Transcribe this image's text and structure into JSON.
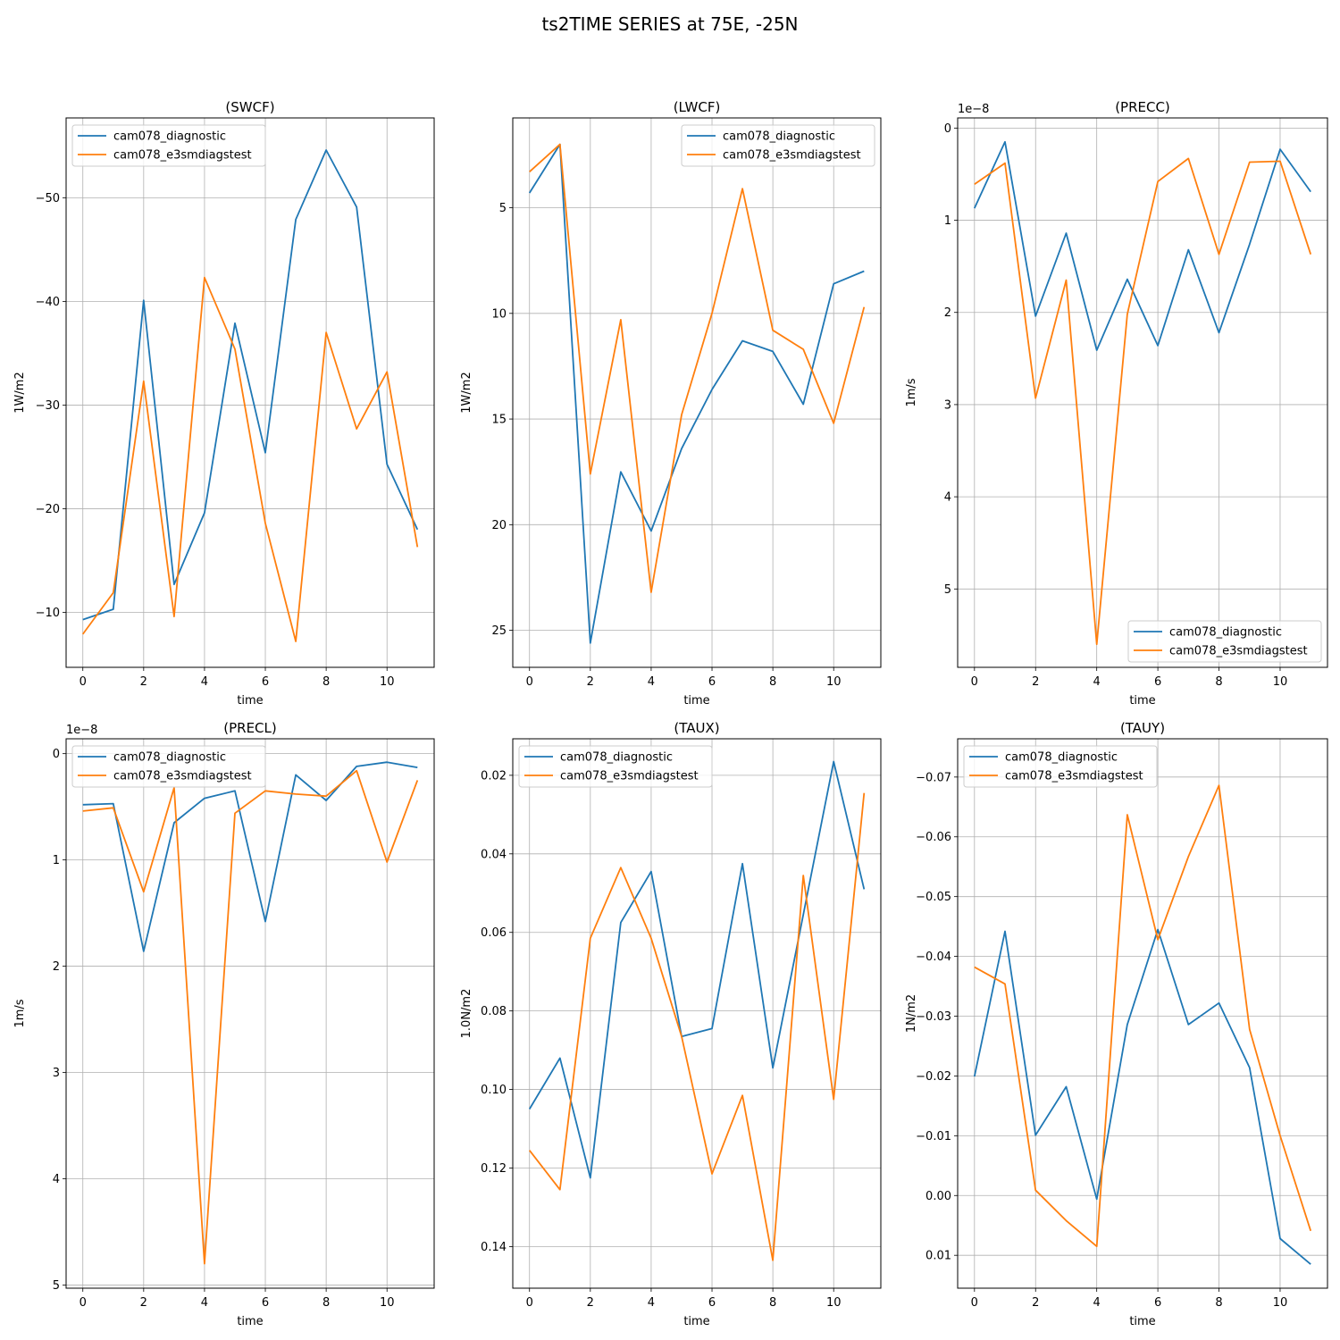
{
  "figure": {
    "title": "ts2TIME SERIES at 75E, -25N",
    "series_names": [
      "cam078_diagnostic",
      "cam078_e3smdiagstest"
    ],
    "series_colors": [
      "#1f77b4",
      "#ff7f0e"
    ],
    "grid": true
  },
  "chart_data": [
    {
      "type": "line",
      "title": "(SWCF)",
      "xlabel": "time",
      "ylabel": "1W/m2",
      "x": [
        0,
        1,
        2,
        3,
        4,
        5,
        6,
        7,
        8,
        9,
        10,
        11
      ],
      "xlim": [
        -0.55,
        11.55
      ],
      "xticks": [
        "0",
        "2",
        "4",
        "6",
        "8",
        "10"
      ],
      "ylim": [
        -4.7,
        -57.7
      ],
      "yticks": [
        "−50",
        "−40",
        "−30",
        "−20",
        "−10"
      ],
      "y_inverted": true,
      "legend": "upper left",
      "series": [
        {
          "name": "cam078_diagnostic",
          "values": [
            -9.3,
            -10.3,
            -40.1,
            -12.7,
            -19.6,
            -37.9,
            -25.4,
            -47.9,
            -54.6,
            -49.1,
            -24.3,
            -18.0
          ]
        },
        {
          "name": "cam078_e3smdiagstest",
          "values": [
            -7.9,
            -11.9,
            -32.3,
            -9.6,
            -42.3,
            -35.4,
            -18.6,
            -7.2,
            -37.0,
            -27.7,
            -33.2,
            -16.3
          ]
        }
      ]
    },
    {
      "type": "line",
      "title": "(LWCF)",
      "xlabel": "time",
      "ylabel": "1W/m2",
      "x": [
        0,
        1,
        2,
        3,
        4,
        5,
        6,
        7,
        8,
        9,
        10,
        11
      ],
      "xlim": [
        -0.55,
        11.55
      ],
      "xticks": [
        "0",
        "2",
        "4",
        "6",
        "8",
        "10"
      ],
      "ylim": [
        26.75,
        0.75
      ],
      "yticks": [
        "5",
        "10",
        "15",
        "20",
        "25"
      ],
      "y_inverted": true,
      "legend": "upper right",
      "series": [
        {
          "name": "cam078_diagnostic",
          "values": [
            4.3,
            2.0,
            25.6,
            17.5,
            20.3,
            16.4,
            13.6,
            11.3,
            11.8,
            14.3,
            8.6,
            8.0
          ]
        },
        {
          "name": "cam078_e3smdiagstest",
          "values": [
            3.3,
            2.0,
            17.6,
            10.3,
            23.2,
            14.8,
            10.0,
            4.1,
            10.8,
            11.7,
            15.2,
            9.7
          ]
        }
      ]
    },
    {
      "type": "line",
      "title": "(PRECC)",
      "xlabel": "time",
      "ylabel": "1m/s",
      "offset_text": "1e−8",
      "x": [
        0,
        1,
        2,
        3,
        4,
        5,
        6,
        7,
        8,
        9,
        10,
        11
      ],
      "xlim": [
        -0.55,
        11.55
      ],
      "xticks": [
        "0",
        "2",
        "4",
        "6",
        "8",
        "10"
      ],
      "ylim": [
        5.85,
        -0.11
      ],
      "yticks": [
        "0",
        "1",
        "2",
        "3",
        "4",
        "5"
      ],
      "y_inverted": true,
      "legend": "lower right",
      "series": [
        {
          "name": "cam078_diagnostic",
          "values": [
            0.87,
            0.15,
            2.04,
            1.14,
            2.41,
            1.64,
            2.36,
            1.32,
            2.22,
            1.26,
            0.23,
            0.69
          ]
        },
        {
          "name": "cam078_e3smdiagstest",
          "values": [
            0.61,
            0.38,
            2.93,
            1.65,
            5.6,
            2.02,
            0.58,
            0.33,
            1.37,
            0.37,
            0.36,
            1.37
          ]
        }
      ]
    },
    {
      "type": "line",
      "title": "(PRECL)",
      "xlabel": "time",
      "ylabel": "1m/s",
      "offset_text": "1e−8",
      "x": [
        0,
        1,
        2,
        3,
        4,
        5,
        6,
        7,
        8,
        9,
        10,
        11
      ],
      "xlim": [
        -0.55,
        11.55
      ],
      "xticks": [
        "0",
        "2",
        "4",
        "6",
        "8",
        "10"
      ],
      "ylim": [
        5.03,
        -0.14
      ],
      "yticks": [
        "0",
        "1",
        "2",
        "3",
        "4",
        "5"
      ],
      "y_inverted": true,
      "legend": "upper left",
      "series": [
        {
          "name": "cam078_diagnostic",
          "values": [
            0.48,
            0.47,
            1.86,
            0.65,
            0.42,
            0.35,
            1.58,
            0.2,
            0.44,
            0.12,
            0.08,
            0.13
          ]
        },
        {
          "name": "cam078_e3smdiagstest",
          "values": [
            0.54,
            0.51,
            1.3,
            0.32,
            4.8,
            0.56,
            0.35,
            0.38,
            0.4,
            0.16,
            1.02,
            0.25
          ]
        }
      ]
    },
    {
      "type": "line",
      "title": "(TAUX)",
      "xlabel": "time",
      "ylabel": "1.0N/m2",
      "x": [
        0,
        1,
        2,
        3,
        4,
        5,
        6,
        7,
        8,
        9,
        10,
        11
      ],
      "xlim": [
        -0.55,
        11.55
      ],
      "xticks": [
        "0",
        "2",
        "4",
        "6",
        "8",
        "10"
      ],
      "ylim": [
        0.1506,
        0.0107
      ],
      "yticks": [
        "0.02",
        "0.04",
        "0.06",
        "0.08",
        "0.10",
        "0.12",
        "0.14"
      ],
      "y_inverted": true,
      "legend": "upper left",
      "series": [
        {
          "name": "cam078_diagnostic",
          "values": [
            0.105,
            0.092,
            0.1225,
            0.0575,
            0.0445,
            0.0865,
            0.0845,
            0.0425,
            0.0945,
            0.0555,
            0.0165,
            0.049
          ]
        },
        {
          "name": "cam078_e3smdiagstest",
          "values": [
            0.1155,
            0.1255,
            0.0615,
            0.0435,
            0.0615,
            0.0865,
            0.1215,
            0.1015,
            0.1435,
            0.0455,
            0.1025,
            0.0245
          ]
        }
      ]
    },
    {
      "type": "line",
      "title": "(TAUY)",
      "xlabel": "time",
      "ylabel": "1N/m2",
      "x": [
        0,
        1,
        2,
        3,
        4,
        5,
        6,
        7,
        8,
        9,
        10,
        11
      ],
      "xlim": [
        -0.55,
        11.55
      ],
      "xticks": [
        "0",
        "2",
        "4",
        "6",
        "8",
        "10"
      ],
      "ylim": [
        0.0155,
        -0.0764
      ],
      "yticks": [
        "−0.07",
        "−0.06",
        "−0.05",
        "−0.04",
        "−0.03",
        "−0.02",
        "−0.01",
        "0.00",
        "0.01"
      ],
      "y_inverted": true,
      "legend": "upper left",
      "series": [
        {
          "name": "cam078_diagnostic",
          "values": [
            -0.0199,
            -0.0442,
            -0.0101,
            -0.0182,
            0.0006,
            -0.0286,
            -0.0445,
            -0.0286,
            -0.0322,
            -0.0214,
            0.0072,
            0.0115
          ]
        },
        {
          "name": "cam078_e3smdiagstest",
          "values": [
            -0.0382,
            -0.0354,
            -0.0009,
            0.0042,
            0.0085,
            -0.0637,
            -0.0428,
            -0.0567,
            -0.0686,
            -0.0278,
            -0.01,
            0.0059
          ]
        }
      ]
    }
  ]
}
